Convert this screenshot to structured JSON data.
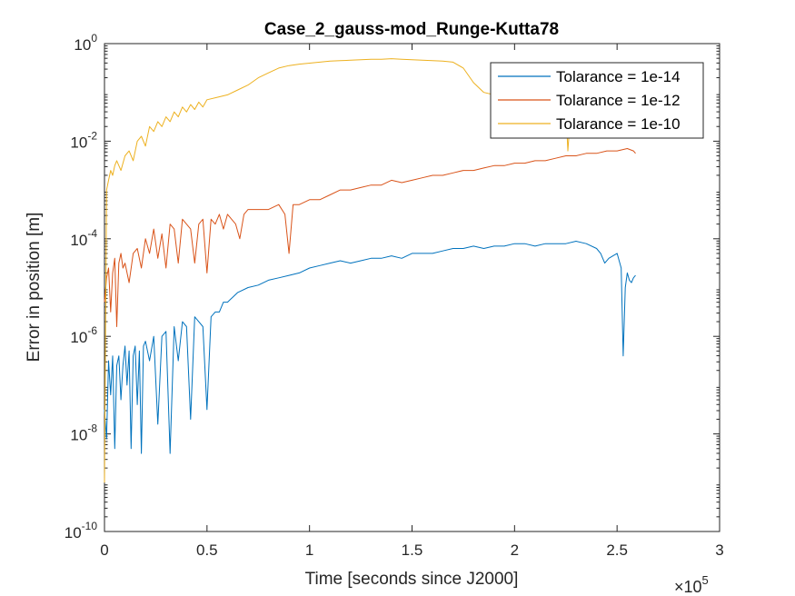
{
  "chart_data": {
    "type": "line",
    "title": "Case_2_gauss-mod_Runge-Kutta78",
    "xlabel": "Time [seconds since J2000]",
    "ylabel": "Error in position [m]",
    "x_exponent_label": {
      "base": "×10",
      "exp": "5"
    },
    "xscale": "linear",
    "yscale": "log",
    "xlim": [
      0,
      3
    ],
    "ylim": [
      1e-10,
      1
    ],
    "x_ticks": [
      {
        "value": 0,
        "label": "0"
      },
      {
        "value": 0.5,
        "label": "0.5"
      },
      {
        "value": 1,
        "label": "1"
      },
      {
        "value": 1.5,
        "label": "1.5"
      },
      {
        "value": 2,
        "label": "2"
      },
      {
        "value": 2.5,
        "label": "2.5"
      },
      {
        "value": 3,
        "label": "3"
      }
    ],
    "y_ticks": [
      {
        "value": -10,
        "base": "10",
        "exp": "-10"
      },
      {
        "value": -8,
        "base": "10",
        "exp": "-8"
      },
      {
        "value": -6,
        "base": "10",
        "exp": "-6"
      },
      {
        "value": -4,
        "base": "10",
        "exp": "-4"
      },
      {
        "value": -2,
        "base": "10",
        "exp": "-2"
      },
      {
        "value": 0,
        "base": "10",
        "exp": "0"
      }
    ],
    "grid": false,
    "legend_position": "top-right",
    "x_units_note": "x values in units of 1e5 seconds; y values are log10(error in m)",
    "series": [
      {
        "name": "Tolarance = 1e-14",
        "color": "#0072bd",
        "x": [
          0.0,
          0.01,
          0.02,
          0.03,
          0.04,
          0.05,
          0.06,
          0.07,
          0.08,
          0.09,
          0.1,
          0.11,
          0.12,
          0.13,
          0.14,
          0.15,
          0.16,
          0.17,
          0.18,
          0.19,
          0.2,
          0.22,
          0.24,
          0.26,
          0.28,
          0.3,
          0.32,
          0.34,
          0.36,
          0.38,
          0.4,
          0.42,
          0.44,
          0.46,
          0.48,
          0.5,
          0.52,
          0.54,
          0.56,
          0.58,
          0.6,
          0.65,
          0.7,
          0.75,
          0.8,
          0.85,
          0.9,
          0.95,
          1.0,
          1.05,
          1.1,
          1.15,
          1.2,
          1.25,
          1.3,
          1.35,
          1.4,
          1.45,
          1.5,
          1.55,
          1.6,
          1.65,
          1.7,
          1.75,
          1.8,
          1.85,
          1.9,
          1.95,
          2.0,
          2.05,
          2.1,
          2.15,
          2.2,
          2.25,
          2.3,
          2.35,
          2.4,
          2.42,
          2.44,
          2.46,
          2.48,
          2.5,
          2.52,
          2.53,
          2.54,
          2.55,
          2.56,
          2.57,
          2.58,
          2.59
        ],
        "y": [
          -7.5,
          -8.1,
          -6.5,
          -7.2,
          -6.4,
          -8.3,
          -6.6,
          -6.4,
          -7.3,
          -6.6,
          -6.2,
          -7.0,
          -6.3,
          -8.3,
          -6.4,
          -6.2,
          -7.4,
          -6.3,
          -8.4,
          -6.2,
          -6.1,
          -6.5,
          -6.0,
          -7.8,
          -6.0,
          -5.9,
          -8.4,
          -5.8,
          -6.5,
          -5.7,
          -5.8,
          -7.7,
          -5.6,
          -5.7,
          -5.8,
          -7.5,
          -5.6,
          -5.5,
          -5.5,
          -5.3,
          -5.3,
          -5.1,
          -5.0,
          -4.95,
          -4.85,
          -4.8,
          -4.75,
          -4.7,
          -4.6,
          -4.55,
          -4.5,
          -4.45,
          -4.5,
          -4.45,
          -4.4,
          -4.4,
          -4.35,
          -4.4,
          -4.3,
          -4.3,
          -4.3,
          -4.25,
          -4.2,
          -4.2,
          -4.15,
          -4.2,
          -4.15,
          -4.15,
          -4.1,
          -4.1,
          -4.15,
          -4.1,
          -4.1,
          -4.1,
          -4.05,
          -4.1,
          -4.2,
          -4.3,
          -4.5,
          -4.4,
          -4.35,
          -4.3,
          -4.6,
          -6.4,
          -5.0,
          -4.7,
          -4.85,
          -4.9,
          -4.8,
          -4.75
        ]
      },
      {
        "name": "Tolarance = 1e-12",
        "color": "#d95319",
        "x": [
          0.0,
          0.01,
          0.02,
          0.03,
          0.04,
          0.05,
          0.06,
          0.07,
          0.08,
          0.09,
          0.1,
          0.12,
          0.14,
          0.16,
          0.18,
          0.2,
          0.22,
          0.24,
          0.26,
          0.28,
          0.3,
          0.32,
          0.34,
          0.36,
          0.38,
          0.4,
          0.42,
          0.44,
          0.46,
          0.48,
          0.5,
          0.52,
          0.54,
          0.56,
          0.58,
          0.6,
          0.62,
          0.64,
          0.66,
          0.68,
          0.7,
          0.75,
          0.8,
          0.85,
          0.88,
          0.9,
          0.92,
          0.95,
          1.0,
          1.05,
          1.1,
          1.15,
          1.2,
          1.25,
          1.3,
          1.35,
          1.4,
          1.45,
          1.5,
          1.55,
          1.6,
          1.65,
          1.7,
          1.75,
          1.8,
          1.85,
          1.9,
          1.95,
          2.0,
          2.05,
          2.1,
          2.15,
          2.2,
          2.25,
          2.3,
          2.35,
          2.4,
          2.45,
          2.5,
          2.55,
          2.58,
          2.59
        ],
        "y": [
          -5.3,
          -4.8,
          -4.6,
          -5.5,
          -4.7,
          -4.4,
          -5.8,
          -4.5,
          -4.3,
          -4.6,
          -4.5,
          -4.9,
          -4.3,
          -4.2,
          -4.6,
          -4.0,
          -4.3,
          -3.8,
          -4.4,
          -3.9,
          -4.6,
          -3.7,
          -3.8,
          -4.5,
          -3.6,
          -3.7,
          -3.8,
          -4.5,
          -3.7,
          -3.6,
          -4.7,
          -3.6,
          -3.7,
          -3.5,
          -3.8,
          -3.5,
          -3.6,
          -3.7,
          -4.0,
          -3.5,
          -3.4,
          -3.4,
          -3.4,
          -3.3,
          -3.5,
          -4.3,
          -3.3,
          -3.3,
          -3.2,
          -3.2,
          -3.1,
          -3.0,
          -3.0,
          -2.95,
          -2.9,
          -2.9,
          -2.8,
          -2.85,
          -2.8,
          -2.75,
          -2.7,
          -2.7,
          -2.65,
          -2.6,
          -2.6,
          -2.55,
          -2.5,
          -2.5,
          -2.45,
          -2.45,
          -2.4,
          -2.4,
          -2.35,
          -2.3,
          -2.3,
          -2.25,
          -2.25,
          -2.2,
          -2.2,
          -2.15,
          -2.2,
          -2.25
        ]
      },
      {
        "name": "Tolarance = 1e-10",
        "color": "#edb120",
        "x": [
          0.0,
          0.01,
          0.02,
          0.03,
          0.04,
          0.05,
          0.06,
          0.08,
          0.1,
          0.12,
          0.14,
          0.16,
          0.18,
          0.2,
          0.22,
          0.24,
          0.26,
          0.28,
          0.3,
          0.32,
          0.34,
          0.36,
          0.38,
          0.4,
          0.42,
          0.44,
          0.46,
          0.48,
          0.5,
          0.55,
          0.6,
          0.65,
          0.7,
          0.75,
          0.8,
          0.85,
          0.9,
          0.95,
          1.0,
          1.05,
          1.1,
          1.15,
          1.2,
          1.25,
          1.3,
          1.35,
          1.4,
          1.45,
          1.5,
          1.55,
          1.6,
          1.65,
          1.7,
          1.75,
          1.8,
          1.85,
          1.9,
          1.95,
          2.0,
          2.05,
          2.1,
          2.15,
          2.2,
          2.25,
          2.26,
          2.27,
          2.28
        ],
        "y": [
          -9.0,
          -3.0,
          -2.8,
          -2.6,
          -2.7,
          -2.5,
          -2.4,
          -2.6,
          -2.3,
          -2.2,
          -2.4,
          -2.0,
          -1.9,
          -2.1,
          -1.7,
          -1.8,
          -1.6,
          -1.7,
          -1.5,
          -1.6,
          -1.4,
          -1.5,
          -1.3,
          -1.4,
          -1.25,
          -1.35,
          -1.2,
          -1.3,
          -1.15,
          -1.1,
          -1.05,
          -0.95,
          -0.85,
          -0.7,
          -0.6,
          -0.5,
          -0.45,
          -0.42,
          -0.4,
          -0.38,
          -0.36,
          -0.35,
          -0.34,
          -0.33,
          -0.32,
          -0.32,
          -0.31,
          -0.32,
          -0.33,
          -0.34,
          -0.35,
          -0.36,
          -0.38,
          -0.5,
          -0.8,
          -1.0,
          -1.05,
          -1.1,
          -1.1,
          -1.15,
          -1.2,
          -1.2,
          -1.25,
          -1.3,
          -2.2,
          -1.6,
          -1.5
        ]
      }
    ]
  }
}
